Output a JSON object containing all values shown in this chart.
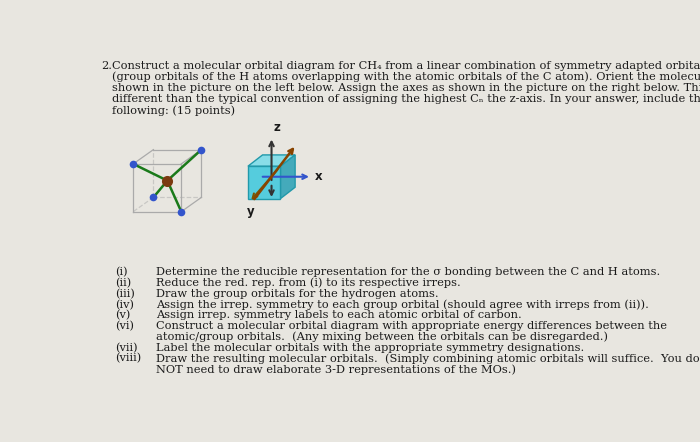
{
  "bg_color": "#e8e6e0",
  "text_color": "#1a1a1a",
  "items": [
    [
      "(i)",
      "Determine the reducible representation for the σ bonding between the C and H atoms."
    ],
    [
      "(ii)",
      "Reduce the red. rep. from (i) to its respective irreps."
    ],
    [
      "(iii)",
      "Draw the group orbitals for the hydrogen atoms."
    ],
    [
      "(iv)",
      "Assign the irrep. symmetry to each group orbital (should agree with irreps from (ii))."
    ],
    [
      "(v)",
      "Assign irrep. symmetry labels to each atomic orbital of carbon."
    ],
    [
      "(vi)",
      "Construct a molecular orbital diagram with appropriate energy differences between the\natomic/group orbitals.  (Any mixing between the orbitals can be disregarded.)"
    ],
    [
      "(vii)",
      "Label the molecular orbitals with the appropriate symmetry designations."
    ],
    [
      "(viii)",
      "Draw the resulting molecular orbitals.  (Simply combining atomic orbitals will suffice.  You do\nNOT need to draw elaborate 3-D representations of the MOs.)"
    ]
  ],
  "cube_edge_color": "#aaaaaa",
  "node_color": "#3355cc",
  "center_color": "#7b3a10",
  "bond_color": "#1a7a1a",
  "axis_cube_color": "#55ccdd",
  "axis_x_color": "#3355cc",
  "axis_y_color": "#7b5500",
  "axis_z_color": "#333333",
  "axis_diag_color": "#884400"
}
